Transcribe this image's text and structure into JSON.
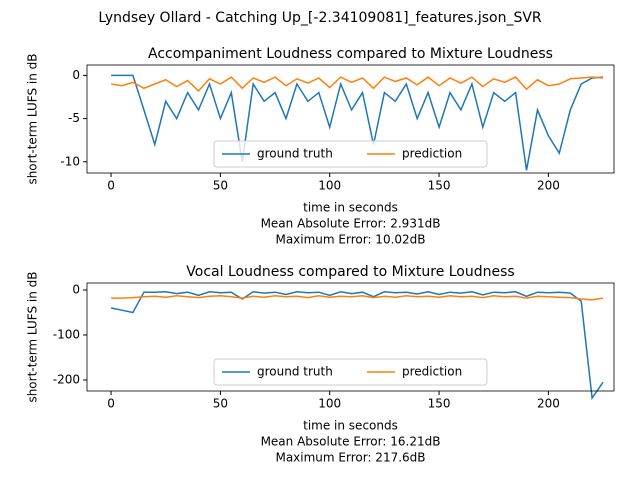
{
  "figure_title": "Lyndsey Ollard - Catching Up_[-2.34109081]_features.json_SVR",
  "chart_data": [
    {
      "type": "line",
      "title": "Accompaniment Loudness compared to Mixture Loudness",
      "xlabel": "time in seconds",
      "ylabel": "short-term LUFS in dB",
      "notes": [
        "Mean Absolute Error: 2.931dB",
        "Maximum Error: 10.02dB"
      ],
      "xlim": [
        -11,
        230
      ],
      "ylim": [
        -11.3,
        1.2
      ],
      "xticks": [
        0,
        50,
        100,
        150,
        200
      ],
      "yticks": [
        -10,
        -5,
        0
      ],
      "legend": "lower center",
      "x": [
        0,
        5,
        10,
        15,
        20,
        25,
        30,
        35,
        40,
        45,
        50,
        55,
        60,
        65,
        70,
        75,
        80,
        85,
        90,
        95,
        100,
        105,
        110,
        115,
        120,
        125,
        130,
        135,
        140,
        145,
        150,
        155,
        160,
        165,
        170,
        175,
        180,
        185,
        190,
        195,
        200,
        205,
        210,
        215,
        220,
        225
      ],
      "series": [
        {
          "name": "ground truth",
          "color": "#1f77b4",
          "values": [
            0,
            0,
            0,
            -4,
            -8,
            -3,
            -5,
            -2,
            -4,
            -1,
            -5,
            -2,
            -10,
            -1,
            -3,
            -2,
            -5,
            -1,
            -3,
            -2,
            -6,
            -1,
            -4,
            -2,
            -8,
            -2,
            -3,
            -1,
            -5,
            -2,
            -6,
            -2,
            -4,
            -1,
            -6,
            -2,
            -3,
            -2,
            -11,
            -4,
            -7,
            -9,
            -4,
            -1,
            -0.3,
            -0.2
          ]
        },
        {
          "name": "prediction",
          "color": "#ff7f0e",
          "values": [
            -1,
            -1.2,
            -0.8,
            -1.5,
            -1,
            -0.5,
            -1.3,
            -0.6,
            -1.8,
            -0.4,
            -1,
            -0.2,
            -1.5,
            -0.3,
            -0.8,
            -0.2,
            -1.2,
            -0.4,
            -0.9,
            -0.3,
            -1.4,
            -0.2,
            -0.8,
            -0.3,
            -1.5,
            -0.2,
            -0.7,
            -0.3,
            -1.1,
            -0.2,
            -1.2,
            -0.3,
            -0.9,
            -0.2,
            -1.3,
            -0.4,
            -0.8,
            -0.2,
            -1.6,
            -0.5,
            -1.2,
            -1,
            -0.4,
            -0.3,
            -0.2,
            -0.3
          ]
        }
      ]
    },
    {
      "type": "line",
      "title": "Vocal Loudness compared to Mixture Loudness",
      "xlabel": "time in seconds",
      "ylabel": "short-term LUFS in dB",
      "notes": [
        "Mean Absolute Error: 16.21dB",
        "Maximum Error: 217.6dB"
      ],
      "xlim": [
        -11,
        230
      ],
      "ylim": [
        -224.5,
        15.5
      ],
      "xticks": [
        0,
        50,
        100,
        150,
        200
      ],
      "yticks": [
        -200,
        -100,
        0
      ],
      "legend": "lower center",
      "x": [
        0,
        5,
        10,
        15,
        20,
        25,
        30,
        35,
        40,
        45,
        50,
        55,
        60,
        65,
        70,
        75,
        80,
        85,
        90,
        95,
        100,
        105,
        110,
        115,
        120,
        125,
        130,
        135,
        140,
        145,
        150,
        155,
        160,
        165,
        170,
        175,
        180,
        185,
        190,
        195,
        200,
        205,
        210,
        215,
        220,
        225
      ],
      "series": [
        {
          "name": "ground truth",
          "color": "#1f77b4",
          "values": [
            -40,
            -45,
            -50,
            -5,
            -5,
            -4,
            -8,
            -5,
            -12,
            -4,
            -6,
            -5,
            -20,
            -4,
            -7,
            -5,
            -10,
            -4,
            -6,
            -5,
            -12,
            -4,
            -8,
            -5,
            -15,
            -4,
            -6,
            -5,
            -9,
            -4,
            -10,
            -5,
            -7,
            -4,
            -11,
            -5,
            -6,
            -4,
            -14,
            -5,
            -6,
            -5,
            -7,
            -25,
            -240,
            -205
          ]
        },
        {
          "name": "prediction",
          "color": "#ff7f0e",
          "values": [
            -18,
            -18,
            -17,
            -15,
            -14,
            -16,
            -13,
            -15,
            -17,
            -14,
            -13,
            -15,
            -18,
            -14,
            -16,
            -13,
            -15,
            -14,
            -17,
            -13,
            -16,
            -14,
            -15,
            -13,
            -17,
            -14,
            -16,
            -13,
            -15,
            -14,
            -16,
            -13,
            -15,
            -14,
            -17,
            -13,
            -15,
            -14,
            -18,
            -14,
            -15,
            -16,
            -17,
            -20,
            -22,
            -18
          ]
        }
      ]
    }
  ]
}
